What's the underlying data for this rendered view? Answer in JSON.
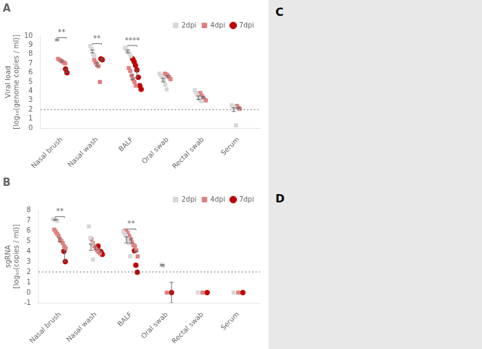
{
  "chart_data": [
    {
      "type": "scatter",
      "title": "A",
      "ylabel": "Viral load\n[log₁₀(genome copies / ml)]",
      "categories": [
        "Nasal brush",
        "Nasal wash",
        "BALF",
        "Oral swab",
        "Rectal swab",
        "Serum"
      ],
      "ylim": [
        0,
        10
      ],
      "yticks": [
        0,
        1,
        2,
        3,
        4,
        5,
        6,
        7,
        8,
        9,
        10
      ],
      "grid": false,
      "legend": "upper right",
      "hlines": [
        {
          "y": 2.0,
          "line_style": "dotted"
        }
      ],
      "annotations": [
        {
          "text": "**",
          "category": "Nasal brush",
          "series": [
            "2dpi",
            "7dpi"
          ]
        },
        {
          "text": "**",
          "category": "Nasal wash",
          "series": [
            "2dpi",
            "7dpi"
          ]
        },
        {
          "text": "****",
          "category": "BALF",
          "series": [
            "2dpi",
            "7dpi"
          ]
        }
      ],
      "series": [
        {
          "name": "2dpi",
          "color": "#d8d8d8",
          "marker": "square",
          "values": [
            [
              9.55
            ],
            [
              8.9,
              8.6,
              8.0,
              7.8
            ],
            [
              8.7,
              8.5,
              8.3,
              8.1,
              7.8
            ],
            [
              5.9,
              5.7,
              5.5,
              5.2,
              4.7,
              4.2
            ],
            [
              4.1,
              3.8,
              3.5,
              3.2,
              3.0,
              2.9
            ],
            [
              2.5,
              2.3,
              2.2,
              0.3
            ]
          ],
          "mean": [
            9.55,
            8.3,
            8.3,
            5.2,
            3.3,
            2.0
          ],
          "error": [
            0.0,
            0.15,
            0.15,
            0.2,
            0.2,
            0.2
          ]
        },
        {
          "name": "4dpi",
          "color": "#e08080",
          "marker": "square",
          "values": [
            [
              7.5,
              7.4,
              7.3,
              7.2,
              7.1,
              7.0
            ],
            [
              7.4,
              7.1,
              6.9,
              6.7,
              5.0
            ],
            [
              6.5,
              6.2,
              5.7,
              5.3,
              5.0,
              4.6
            ],
            [
              5.9,
              5.8,
              5.7,
              5.5,
              5.3
            ],
            [
              3.8,
              3.5,
              3.3,
              3.1,
              3.0
            ],
            [
              2.4,
              2.2,
              2.1
            ]
          ],
          "mean": [
            7.25,
            6.9,
            5.5,
            5.6,
            3.3,
            2.2
          ],
          "error": [
            0.1,
            0.2,
            0.25,
            0.1,
            0.1,
            0.05
          ]
        },
        {
          "name": "7dpi",
          "color": "#c00000",
          "marker": "circle",
          "values": [
            [
              6.4,
              6.0
            ],
            [
              7.5,
              7.4
            ],
            [
              7.5,
              7.2,
              6.8,
              6.3,
              5.5,
              4.6,
              4.2
            ],
            [],
            [],
            []
          ],
          "mean": [
            6.2,
            7.45,
            5.9,
            null,
            null,
            null
          ],
          "error": [
            0.2,
            0.1,
            0.4,
            null,
            null,
            null
          ]
        }
      ]
    },
    {
      "type": "scatter",
      "title": "B",
      "ylabel": "sgRNA\n[log₁₀(copies / ml)]",
      "categories": [
        "Nasal brush",
        "Nasal wash",
        "BALF",
        "Oral swab",
        "Rectal swab",
        "Serum"
      ],
      "ylim": [
        -1,
        8
      ],
      "yticks": [
        -1,
        0,
        1,
        2,
        3,
        4,
        5,
        6,
        7,
        8
      ],
      "grid": false,
      "legend": "upper right",
      "hlines": [
        {
          "y": 2.0,
          "line_style": "dotted"
        }
      ],
      "annotations": [
        {
          "text": "**",
          "category": "Nasal brush",
          "series": [
            "2dpi",
            "7dpi"
          ]
        },
        {
          "text": "**",
          "category": "BALF",
          "series": [
            "2dpi",
            "7dpi"
          ]
        }
      ],
      "series": [
        {
          "name": "2dpi",
          "color": "#d8d8d8",
          "marker": "square",
          "values": [
            [
              7.1,
              7.05,
              7.0,
              6.95
            ],
            [
              6.4,
              5.3,
              4.7,
              3.2
            ],
            [
              5.9,
              5.7,
              5.5,
              5.2,
              4.8,
              3.5
            ],
            [
              2.7,
              2.6
            ],
            [
              0.0
            ],
            [
              0.0
            ]
          ],
          "mean": [
            7.05,
            4.4,
            5.1,
            2.65,
            null,
            null
          ],
          "error": [
            0.05,
            0.3,
            0.3,
            0.05,
            null,
            null
          ]
        },
        {
          "name": "4dpi",
          "color": "#e08080",
          "marker": "square",
          "values": [
            [
              6.1,
              5.9,
              5.7,
              5.5,
              5.1,
              5.0,
              4.8,
              4.5,
              4.3
            ],
            [
              5.2,
              4.8,
              4.5,
              4.3,
              4.1,
              3.95,
              3.8
            ],
            [
              6.0,
              5.9,
              5.8,
              5.5,
              5.2,
              4.85,
              4.6,
              4.5,
              4.1,
              3.5
            ],
            [
              0.0
            ],
            [
              0.0
            ],
            [
              0.0
            ]
          ],
          "mean": [
            5.1,
            4.3,
            5.0,
            null,
            null,
            null
          ],
          "error": [
            0.2,
            0.15,
            0.2,
            null,
            null,
            null
          ]
        },
        {
          "name": "7dpi",
          "color": "#c00000",
          "marker": "circle",
          "values": [
            [
              4.0,
              3.0
            ],
            [
              4.5,
              4.0,
              3.95,
              3.7
            ],
            [
              4.05,
              2.65,
              1.97
            ],
            [
              0.0
            ],
            [
              0.0
            ],
            [
              0.0
            ]
          ],
          "mean": [
            3.5,
            4.05,
            4.0,
            0.0,
            null,
            null
          ],
          "error": [
            0.5,
            0.15,
            0.05,
            1.0,
            null,
            null
          ]
        }
      ]
    }
  ],
  "image_panels": {
    "labels": [
      "C",
      "D"
    ],
    "color": "#e8e8e8"
  }
}
